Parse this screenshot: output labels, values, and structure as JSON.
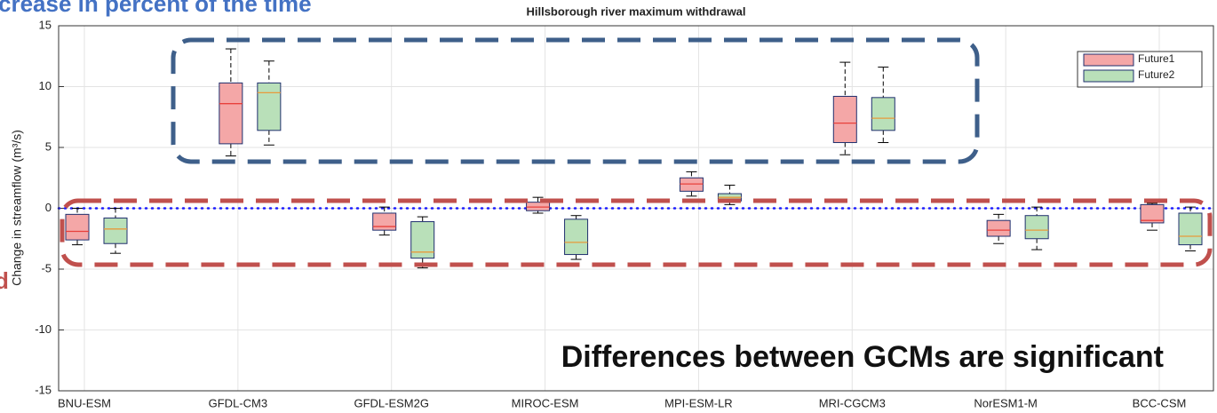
{
  "chart_data": {
    "type": "box",
    "title": "Hillsborough river maximum withdrawal",
    "y_label": "Change in streamflow (m³/s)",
    "annotations": [
      "crease in percent of the time",
      "d",
      "Differences between GCMs are significant"
    ],
    "categories": [
      "BNU-ESM",
      "GFDL-CM3",
      "GFDL-ESM2G",
      "MIROC-ESM",
      "MPI-ESM-LR",
      "MRI-CGCM3",
      "NorESM1-M",
      "BCC-CSM"
    ],
    "series": [
      {
        "name": "Future1",
        "color": "#f4a7a7",
        "median_color": "#e8413c",
        "boxes": [
          {
            "low": -3.0,
            "q1": -2.6,
            "median": -1.9,
            "q3": -0.5,
            "high": 0
          },
          {
            "low": 4.3,
            "q1": 5.3,
            "median": 8.6,
            "q3": 10.3,
            "high": 13.1
          },
          {
            "low": -2.2,
            "q1": -1.8,
            "median": -1.5,
            "q3": -0.4,
            "high": 0.1
          },
          {
            "low": -0.4,
            "q1": -0.2,
            "median": 0.1,
            "q3": 0.5,
            "high": 0.9
          },
          {
            "low": 1.0,
            "q1": 1.4,
            "median": 2.0,
            "q3": 2.5,
            "high": 3.0
          },
          {
            "low": 4.4,
            "q1": 5.4,
            "median": 7.0,
            "q3": 9.2,
            "high": 12.0
          },
          {
            "low": -2.9,
            "q1": -2.3,
            "median": -1.8,
            "q3": -1.0,
            "high": -0.5
          },
          {
            "low": -1.8,
            "q1": -1.2,
            "median": -1.0,
            "q3": 0.3,
            "high": 0.4
          }
        ]
      },
      {
        "name": "Future2",
        "color": "#b9e0b9",
        "median_color": "#e89a3c",
        "boxes": [
          {
            "low": -3.7,
            "q1": -2.9,
            "median": -1.7,
            "q3": -0.8,
            "high": 0
          },
          {
            "low": 5.2,
            "q1": 6.4,
            "median": 9.5,
            "q3": 10.3,
            "high": 12.1
          },
          {
            "low": -4.9,
            "q1": -4.1,
            "median": -3.6,
            "q3": -1.1,
            "high": -0.7
          },
          {
            "low": -4.2,
            "q1": -3.8,
            "median": -2.8,
            "q3": -0.9,
            "high": -0.6
          },
          {
            "low": 0.3,
            "q1": 0.6,
            "median": 0.9,
            "q3": 1.2,
            "high": 1.9
          },
          {
            "low": 5.4,
            "q1": 6.4,
            "median": 7.4,
            "q3": 9.1,
            "high": 11.6
          },
          {
            "low": -3.4,
            "q1": -2.5,
            "median": -1.8,
            "q3": -0.6,
            "high": 0.1
          },
          {
            "low": -3.5,
            "q1": -3.0,
            "median": -2.3,
            "q3": -0.4,
            "high": 0.1
          }
        ]
      }
    ],
    "ylim": [
      -15,
      15
    ],
    "yticks": [
      15,
      10,
      5,
      0,
      -5,
      -10,
      -15
    ],
    "grid": true
  }
}
